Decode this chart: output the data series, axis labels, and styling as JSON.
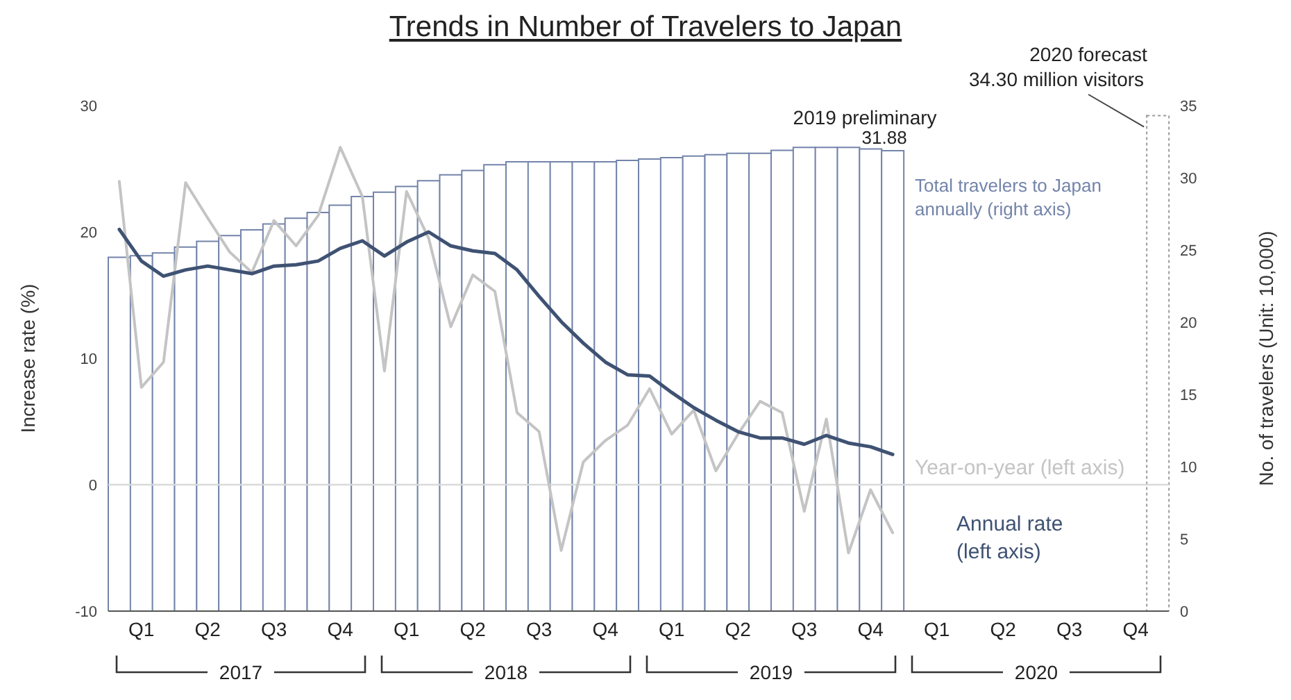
{
  "chart_data": {
    "type": "bar",
    "title": "Trends in Number of Travelers to Japan",
    "ylabel": "Increase rate (%)",
    "y2label": "No. of travelers (Unit: 10,000)",
    "categories": [
      null,
      "Q1",
      null,
      null,
      "Q2",
      null,
      null,
      "Q3",
      null,
      null,
      "Q4",
      null,
      null,
      "Q1",
      null,
      null,
      "Q2",
      null,
      null,
      "Q3",
      null,
      null,
      "Q4",
      null,
      null,
      "Q1",
      null,
      null,
      "Q2",
      null,
      null,
      "Q3",
      null,
      null,
      "Q4",
      null,
      null,
      "Q1",
      null,
      null,
      "Q2",
      null,
      null,
      "Q3",
      null,
      null,
      "Q4",
      null
    ],
    "ylim": [
      -10,
      30
    ],
    "yticks": [
      -10,
      0,
      10,
      20,
      30
    ],
    "y2lim": [
      0,
      35
    ],
    "y2ticks": [
      0,
      5,
      10,
      15,
      20,
      25,
      30,
      35
    ],
    "marker": "none",
    "ref_lines": [
      {
        "axis": "y",
        "value": 0,
        "color": "#d9d9d9"
      }
    ],
    "annotations": [
      "2019 preliminary",
      "2020 forecast",
      "2017",
      "2018",
      "2019",
      "2020"
    ],
    "series": [
      {
        "name": "Total travelers to Japan annually (right axis)",
        "axis": "y2",
        "color": "#7384aa",
        "values": [
          24.5,
          24.6,
          24.8,
          25.2,
          25.6,
          26.0,
          26.4,
          26.8,
          27.2,
          27.6,
          28.1,
          28.7,
          29.0,
          29.4,
          29.8,
          30.2,
          30.5,
          30.9,
          31.1,
          31.1,
          31.1,
          31.1,
          31.1,
          31.2,
          31.3,
          31.4,
          31.5,
          31.6,
          31.7,
          31.7,
          31.9,
          32.1,
          32.1,
          32.1,
          32.0,
          31.88,
          null,
          null,
          null,
          null,
          null,
          null,
          null,
          null,
          null,
          null,
          null,
          null
        ],
        "value_labels": [
          null,
          null,
          null,
          null,
          null,
          null,
          null,
          null,
          null,
          null,
          null,
          null,
          null,
          null,
          null,
          null,
          null,
          null,
          null,
          null,
          null,
          null,
          null,
          null,
          null,
          null,
          null,
          null,
          null,
          null,
          null,
          null,
          null,
          null,
          null,
          "31.88",
          null,
          null,
          null,
          null,
          null,
          null,
          null,
          null,
          null,
          null,
          null,
          null
        ]
      },
      {
        "axis": "y2",
        "color": "#9a9a9a",
        "line_style": "dotted",
        "values": [
          null,
          null,
          null,
          null,
          null,
          null,
          null,
          null,
          null,
          null,
          null,
          null,
          null,
          null,
          null,
          null,
          null,
          null,
          null,
          null,
          null,
          null,
          null,
          null,
          null,
          null,
          null,
          null,
          null,
          null,
          null,
          null,
          null,
          null,
          null,
          null,
          null,
          null,
          null,
          null,
          null,
          null,
          null,
          null,
          null,
          null,
          null,
          34.3
        ],
        "value_labels": [
          null,
          null,
          null,
          null,
          null,
          null,
          null,
          null,
          null,
          null,
          null,
          null,
          null,
          null,
          null,
          null,
          null,
          null,
          null,
          null,
          null,
          null,
          null,
          null,
          null,
          null,
          null,
          null,
          null,
          null,
          null,
          null,
          null,
          null,
          null,
          null,
          null,
          null,
          null,
          null,
          null,
          null,
          null,
          null,
          null,
          null,
          null,
          "34.30 million visitors"
        ]
      },
      {
        "name": "Year-on-year (left axis)",
        "type": "line",
        "color": "#c4c4c4",
        "values": [
          24.0,
          7.7,
          9.7,
          23.9,
          21.1,
          18.4,
          16.8,
          20.9,
          18.9,
          21.3,
          26.7,
          22.8,
          9.0,
          23.2,
          19.5,
          12.5,
          16.6,
          15.3,
          5.7,
          4.2,
          -5.2,
          1.8,
          3.5,
          4.7,
          7.6,
          4.0,
          5.9,
          1.1,
          4.0,
          6.6,
          5.7,
          -2.1,
          5.2,
          -5.4,
          -0.4,
          -3.8,
          null,
          null,
          null,
          null,
          null,
          null,
          null,
          null,
          null,
          null,
          null,
          null
        ]
      },
      {
        "name": "Annual rate (left axis)",
        "type": "line",
        "color": "#3f5273",
        "values": [
          20.2,
          17.7,
          16.5,
          17.0,
          17.3,
          17.0,
          16.7,
          17.3,
          17.4,
          17.7,
          18.7,
          19.3,
          18.1,
          19.2,
          20.0,
          18.9,
          18.5,
          18.3,
          17.0,
          14.9,
          12.9,
          11.2,
          9.7,
          8.7,
          8.6,
          7.3,
          6.1,
          5.1,
          4.2,
          3.7,
          3.7,
          3.2,
          3.9,
          3.3,
          3.0,
          2.4,
          null,
          null,
          null,
          null,
          null,
          null,
          null,
          null,
          null,
          null,
          null,
          null
        ]
      }
    ]
  }
}
